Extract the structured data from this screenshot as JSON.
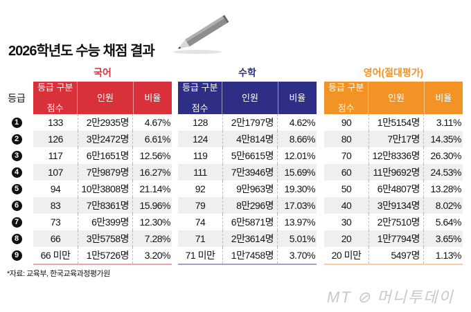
{
  "title": "2026학년도 수능 채점 결과",
  "grade_header": "등급",
  "grades": [
    "1",
    "2",
    "3",
    "4",
    "5",
    "6",
    "7",
    "8",
    "9"
  ],
  "column_headers": {
    "cutoff": [
      "등급 구분",
      "점수"
    ],
    "count": "인원",
    "ratio": "비율"
  },
  "subjects": [
    {
      "name": "국어",
      "color": "#d9313a",
      "rows": [
        [
          "133",
          "2만2935명",
          "4.67%"
        ],
        [
          "126",
          "3만2472명",
          "6.61%"
        ],
        [
          "117",
          "6만1651명",
          "12.56%"
        ],
        [
          "107",
          "7만9879명",
          "16.27%"
        ],
        [
          "94",
          "10만3808명",
          "21.14%"
        ],
        [
          "83",
          "7만8361명",
          "15.96%"
        ],
        [
          "73",
          "6만399명",
          "12.30%"
        ],
        [
          "66",
          "3만5758명",
          "7.28%"
        ],
        [
          "66 미만",
          "1만5726명",
          "3.20%"
        ]
      ]
    },
    {
      "name": "수학",
      "color": "#2e2f84",
      "rows": [
        [
          "128",
          "2만1797명",
          "4.62%"
        ],
        [
          "124",
          "4만814명",
          "8.66%"
        ],
        [
          "119",
          "5만6615명",
          "12.01%"
        ],
        [
          "111",
          "7만3946명",
          "15.69%"
        ],
        [
          "92",
          "9만963명",
          "19.30%"
        ],
        [
          "79",
          "8만296명",
          "17.03%"
        ],
        [
          "74",
          "6만5871명",
          "13.97%"
        ],
        [
          "71",
          "2만3614명",
          "5.01%"
        ],
        [
          "71 미만",
          "1만7458명",
          "3.70%"
        ]
      ]
    },
    {
      "name": "영어(절대평가)",
      "color": "#f39325",
      "rows": [
        [
          "90",
          "1만5154명",
          "3.11%"
        ],
        [
          "80",
          "7만17명",
          "14.35%"
        ],
        [
          "70",
          "12만8336명",
          "26.30%"
        ],
        [
          "60",
          "11만9692명",
          "24.53%"
        ],
        [
          "50",
          "6만4807명",
          "13.28%"
        ],
        [
          "40",
          "3만9134명",
          "8.02%"
        ],
        [
          "30",
          "2만7510명",
          "5.64%"
        ],
        [
          "20",
          "1만7794명",
          "3.65%"
        ],
        [
          "20 미만",
          "5497명",
          "1.13%"
        ]
      ]
    }
  ],
  "source": "*자료: 교육부, 한국교육과정평가원",
  "logo": "MT 머니투데이"
}
